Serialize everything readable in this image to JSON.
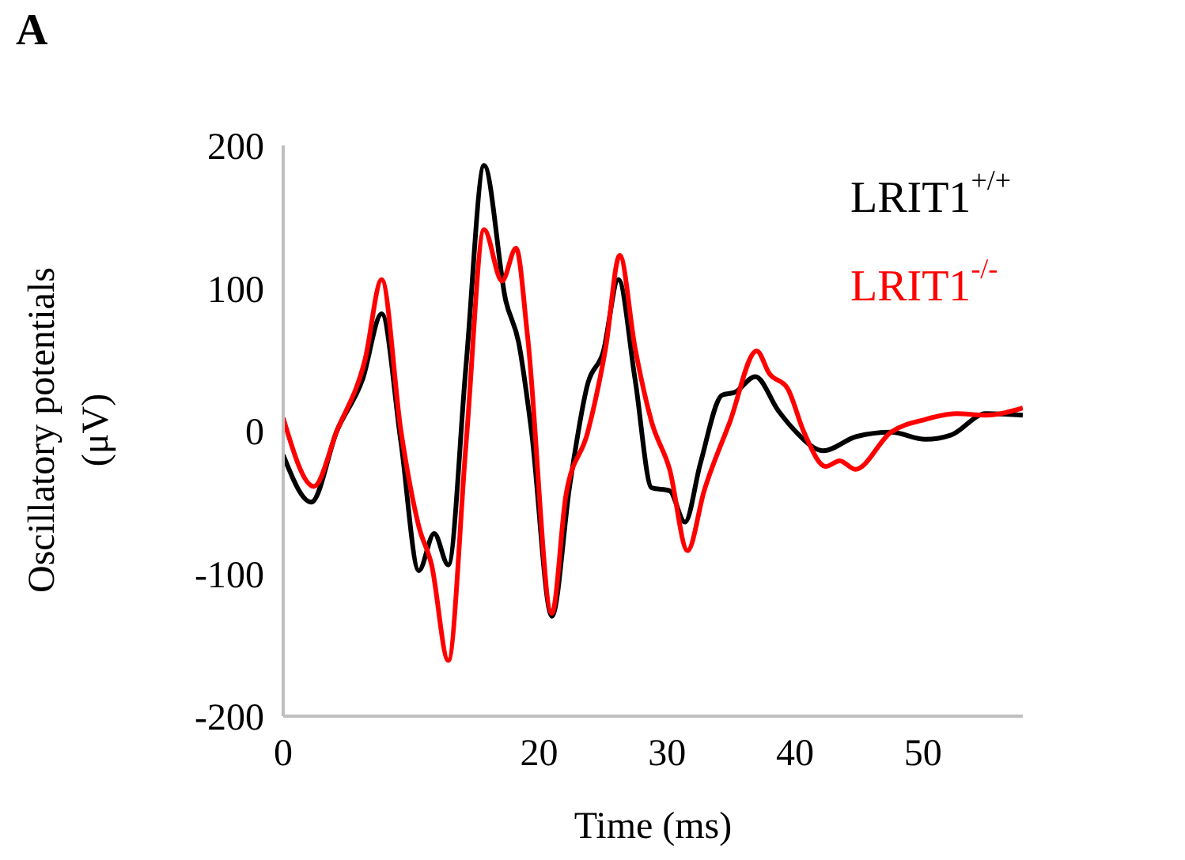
{
  "chart_data": {
    "type": "line",
    "xlabel": "Time (ms)",
    "ylabel": "Oscillatory potentials (μV)",
    "annotations": [
      "A"
    ],
    "xlim": [
      0,
      57.8
    ],
    "xticks": [
      0,
      20,
      30,
      40,
      50
    ],
    "ylim": [
      -200,
      200
    ],
    "yticks": [
      -200,
      -100,
      0,
      100,
      200
    ],
    "grid": false,
    "legend": "top right",
    "marker": "none",
    "line_style": "solid",
    "series": [
      {
        "name": "LRIT1$^{+/+}$",
        "color": "#000000",
        "x": [
          0,
          2.2,
          4.2,
          6.2,
          7.7,
          9.2,
          10.6,
          11.8,
          12.9,
          14.3,
          15.7,
          17.4,
          18.4,
          19.4,
          21.0,
          22.4,
          23.8,
          25.0,
          26.2,
          27.5,
          28.8,
          30.2,
          31.4,
          32.6,
          34.3,
          35.3,
          36.9,
          38.7,
          40.0,
          42.2,
          44.8,
          47.5,
          50.2,
          52.2,
          54.9,
          57.8
        ],
        "values": [
          -17,
          -50,
          0,
          36,
          82,
          -8,
          -98,
          -72,
          -94,
          47,
          186,
          91,
          62,
          0,
          -130,
          -38,
          33,
          55,
          106,
          36,
          -40,
          -42,
          -64,
          -23,
          25,
          27,
          38,
          14,
          0,
          -14,
          -4,
          -1,
          -6,
          -3,
          12,
          11
        ]
      },
      {
        "name": "LRIT1$^{-/-}$",
        "color": "#ff0000",
        "x": [
          0,
          2.4,
          4.2,
          6.4,
          7.7,
          9.2,
          10.6,
          11.6,
          12.9,
          14.3,
          15.7,
          17.1,
          18.2,
          19.1,
          21.0,
          22.1,
          23.8,
          25.2,
          26.3,
          27.5,
          28.8,
          30.2,
          31.6,
          32.9,
          34.9,
          37.0,
          38.0,
          39.4,
          40.7,
          42.4,
          43.5,
          44.7,
          47.5,
          50.2,
          52.6,
          54.9,
          57.8
        ],
        "values": [
          9,
          -39,
          0,
          50,
          106,
          0,
          -67,
          -94,
          -161,
          -8,
          141,
          105,
          128,
          66,
          -128,
          -45,
          -1,
          58,
          123,
          58,
          6,
          -27,
          -84,
          -42,
          6,
          56,
          40,
          30,
          -1,
          -25,
          -21,
          -27,
          -1,
          8,
          12,
          11,
          16
        ]
      }
    ]
  }
}
